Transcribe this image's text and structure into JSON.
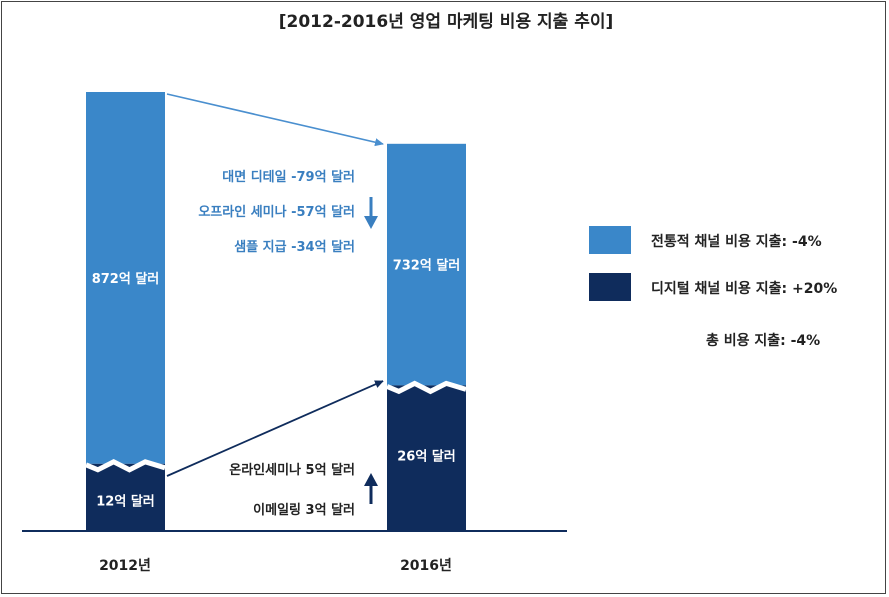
{
  "colors": {
    "traditional": "#3a87c9",
    "digital": "#0f2c5c",
    "arrow_light": "#4a8fcf",
    "arrow_dark": "#0f2c5c",
    "label_blue": "#3a7fc0",
    "text": "#222222"
  },
  "chart_data": {
    "type": "bar",
    "title": "[2012-2016년 영업 마케팅 비용 지출 추이]",
    "categories": [
      "2012년",
      "2016년"
    ],
    "series": [
      {
        "name": "디지털 채널 비용 지출: +20%",
        "values": [
          12,
          26
        ],
        "labels": [
          "12억 달러",
          "26억 달러"
        ]
      },
      {
        "name": "전통적 채널 비용 지출: -4%",
        "values": [
          872,
          732
        ],
        "labels": [
          "872억 달러",
          "732억 달러"
        ]
      }
    ],
    "annotations": {
      "traditional_changes": [
        "대면 디테일 -79억 달러",
        "오프라인 세미나 -57억 달러",
        "샘플 지급 -34억 달러"
      ],
      "digital_changes": [
        "온라인세미나 5억 달러",
        "이메일링 3억 달러"
      ],
      "total": "총 비용 지출: -4%"
    },
    "legend_position": "right",
    "grid": false
  }
}
